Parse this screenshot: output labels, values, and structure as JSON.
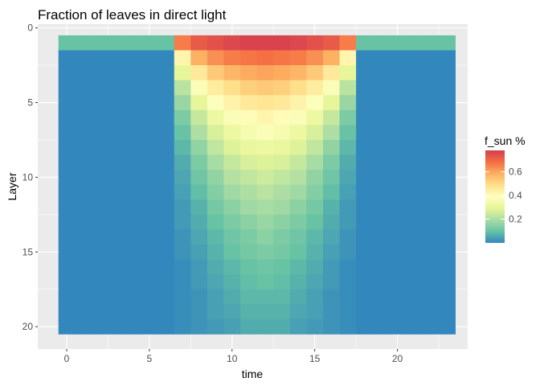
{
  "chart_data": {
    "type": "heatmap",
    "title": "Fraction of leaves in direct light",
    "xlabel": "time",
    "ylabel": "Layer",
    "x_ticks": [
      0,
      5,
      10,
      15,
      20
    ],
    "y_ticks": [
      0,
      5,
      10,
      15,
      20
    ],
    "xlim": [
      -1.75,
      24.25
    ],
    "ylim": [
      21.5,
      -0.25
    ],
    "y_reversed": true,
    "x_values": [
      0,
      1,
      2,
      3,
      4,
      5,
      6,
      7,
      8,
      9,
      10,
      11,
      12,
      13,
      14,
      15,
      16,
      17,
      18,
      19,
      20,
      21,
      22,
      23
    ],
    "layers": [
      1,
      2,
      3,
      4,
      5,
      6,
      7,
      8,
      9,
      10,
      11,
      12,
      13,
      14,
      15,
      16,
      17,
      18,
      19,
      20
    ],
    "legend": {
      "title": "f_sun %",
      "ticks": [
        0.2,
        0.4,
        0.6
      ],
      "range": [
        0.0,
        0.78
      ],
      "colors": [
        "#3288BD",
        "#66C2A5",
        "#ABDDA4",
        "#E6F598",
        "#FFFFBF",
        "#FEE08B",
        "#FDAE61",
        "#F46D43",
        "#D53E4F"
      ],
      "position": "right"
    },
    "grid": true,
    "night_value": 0.0,
    "night_top_layer_value": 0.1,
    "profiles": {
      "7": [
        0.66,
        0.42,
        0.3,
        0.22,
        0.17,
        0.13,
        0.1,
        0.08,
        0.06,
        0.05,
        0.04,
        0.03,
        0.03,
        0.02,
        0.02,
        0.01,
        0.01,
        0.01,
        0.01,
        0.01
      ],
      "8": [
        0.72,
        0.58,
        0.46,
        0.37,
        0.3,
        0.24,
        0.2,
        0.16,
        0.13,
        0.11,
        0.09,
        0.07,
        0.06,
        0.05,
        0.04,
        0.03,
        0.03,
        0.02,
        0.02,
        0.02
      ],
      "9": [
        0.74,
        0.63,
        0.53,
        0.45,
        0.38,
        0.32,
        0.27,
        0.23,
        0.19,
        0.16,
        0.14,
        0.12,
        0.1,
        0.08,
        0.07,
        0.06,
        0.05,
        0.04,
        0.04,
        0.03
      ],
      "10": [
        0.76,
        0.66,
        0.57,
        0.49,
        0.43,
        0.37,
        0.32,
        0.28,
        0.24,
        0.21,
        0.18,
        0.15,
        0.13,
        0.11,
        0.1,
        0.08,
        0.07,
        0.06,
        0.05,
        0.04
      ],
      "11": [
        0.77,
        0.67,
        0.59,
        0.52,
        0.46,
        0.4,
        0.35,
        0.31,
        0.27,
        0.23,
        0.2,
        0.18,
        0.15,
        0.13,
        0.12,
        0.1,
        0.09,
        0.08,
        0.07,
        0.06
      ],
      "12": [
        0.77,
        0.68,
        0.6,
        0.53,
        0.47,
        0.42,
        0.37,
        0.32,
        0.28,
        0.25,
        0.22,
        0.19,
        0.17,
        0.15,
        0.13,
        0.11,
        0.1,
        0.08,
        0.07,
        0.06
      ],
      "13": [
        0.77,
        0.67,
        0.59,
        0.52,
        0.46,
        0.4,
        0.35,
        0.31,
        0.27,
        0.23,
        0.2,
        0.18,
        0.15,
        0.13,
        0.12,
        0.1,
        0.09,
        0.08,
        0.07,
        0.06
      ],
      "14": [
        0.76,
        0.66,
        0.57,
        0.49,
        0.43,
        0.37,
        0.32,
        0.28,
        0.24,
        0.21,
        0.18,
        0.15,
        0.13,
        0.11,
        0.1,
        0.08,
        0.07,
        0.06,
        0.05,
        0.04
      ],
      "15": [
        0.74,
        0.63,
        0.53,
        0.45,
        0.38,
        0.32,
        0.27,
        0.23,
        0.19,
        0.16,
        0.14,
        0.12,
        0.1,
        0.08,
        0.07,
        0.06,
        0.05,
        0.04,
        0.04,
        0.03
      ],
      "16": [
        0.72,
        0.58,
        0.46,
        0.37,
        0.3,
        0.24,
        0.2,
        0.16,
        0.13,
        0.11,
        0.09,
        0.07,
        0.06,
        0.05,
        0.04,
        0.03,
        0.03,
        0.02,
        0.02,
        0.02
      ],
      "17": [
        0.66,
        0.42,
        0.3,
        0.22,
        0.17,
        0.13,
        0.1,
        0.08,
        0.06,
        0.05,
        0.04,
        0.03,
        0.03,
        0.02,
        0.02,
        0.01,
        0.01,
        0.01,
        0.01,
        0.01
      ]
    }
  }
}
